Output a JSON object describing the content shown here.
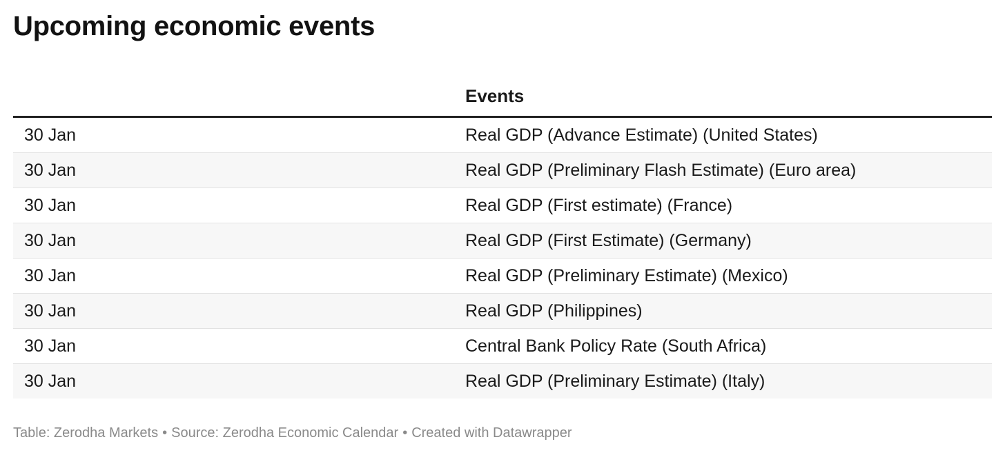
{
  "title": "Upcoming economic events",
  "chart_data": {
    "type": "table",
    "title": "Upcoming economic events",
    "columns": [
      "",
      "Events"
    ],
    "rows": [
      [
        "30 Jan",
        "Real GDP (Advance Estimate) (United States)"
      ],
      [
        "30 Jan",
        "Real GDP (Preliminary Flash Estimate) (Euro area)"
      ],
      [
        "30 Jan",
        "Real GDP (First estimate) (France)"
      ],
      [
        "30 Jan",
        "Real GDP (First Estimate) (Germany)"
      ],
      [
        "30 Jan",
        "Real GDP (Preliminary Estimate) (Mexico)"
      ],
      [
        "30 Jan",
        "Real GDP (Philippines)"
      ],
      [
        "30 Jan",
        "Central Bank Policy Rate (South Africa)"
      ],
      [
        "30 Jan",
        "Real GDP (Preliminary Estimate) (Italy)"
      ]
    ]
  },
  "footer": {
    "credit": "Table: Zerodha Markets",
    "source": "Source: Zerodha Economic Calendar",
    "tool": "Created with Datawrapper",
    "separator": "•"
  },
  "colors": {
    "header_rule": "#222222",
    "row_alt_bg": "#f7f7f7",
    "row_divider": "#e2e2e2",
    "footer_text": "#8a8a8a"
  }
}
